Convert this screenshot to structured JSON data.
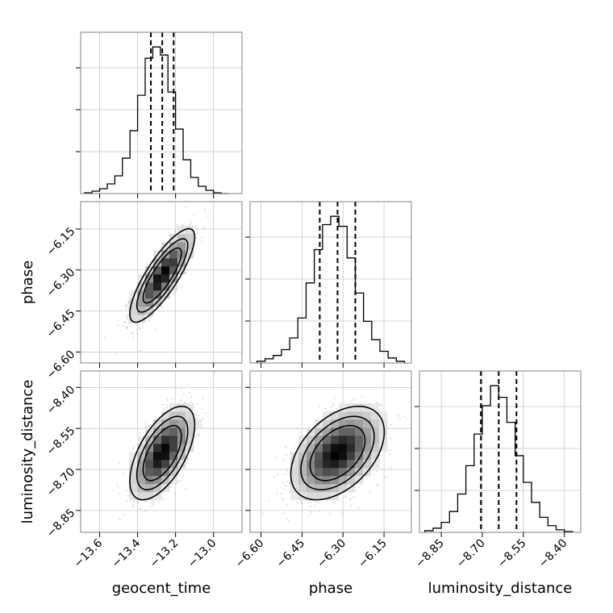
{
  "chart_data": {
    "type": "corner",
    "params": [
      "geocent_time",
      "phase",
      "luminosity_distance"
    ],
    "axis_labels": {
      "geocent_time": "geocent_time",
      "phase": "phase",
      "luminosity_distance": "luminosity_distance"
    },
    "ranges": {
      "geocent_time": [
        -13.7,
        -12.85
      ],
      "phase": [
        -6.64,
        -6.05
      ],
      "luminosity_distance": [
        -8.93,
        -8.34
      ]
    },
    "tick_values": {
      "geocent_time": [
        -13.6,
        -13.4,
        -13.2,
        -13.0
      ],
      "phase": [
        -6.6,
        -6.45,
        -6.3,
        -6.15
      ],
      "luminosity_distance": [
        -8.85,
        -8.7,
        -8.55,
        -8.4
      ]
    },
    "tick_labels": {
      "geocent_time": [
        "−13.6",
        "−13.4",
        "−13.2",
        "−13.0"
      ],
      "phase": [
        "−6.60",
        "−6.45",
        "−6.30",
        "−6.15"
      ],
      "luminosity_distance": [
        "−8.85",
        "−8.70",
        "−8.55",
        "−8.40"
      ]
    },
    "histograms": {
      "geocent_time": {
        "bin_edges": [
          -13.68,
          -13.64,
          -13.6,
          -13.56,
          -13.52,
          -13.48,
          -13.44,
          -13.4,
          -13.36,
          -13.32,
          -13.28,
          -13.24,
          -13.2,
          -13.16,
          -13.12,
          -13.08,
          -13.04,
          -13.0,
          -12.96,
          -12.92
        ],
        "counts": [
          1,
          3,
          6,
          12,
          22,
          44,
          78,
          122,
          168,
          182,
          172,
          126,
          80,
          42,
          20,
          9,
          4,
          1,
          0
        ]
      },
      "phase": {
        "bin_edges": [
          -6.615,
          -6.585,
          -6.555,
          -6.525,
          -6.495,
          -6.465,
          -6.435,
          -6.405,
          -6.375,
          -6.345,
          -6.315,
          -6.285,
          -6.255,
          -6.225,
          -6.195,
          -6.165,
          -6.135,
          -6.105,
          -6.075
        ],
        "counts": [
          2,
          5,
          9,
          16,
          30,
          54,
          96,
          136,
          166,
          176,
          164,
          126,
          84,
          50,
          28,
          14,
          6,
          2
        ]
      },
      "luminosity_distance": {
        "bin_edges": [
          -8.91,
          -8.88,
          -8.85,
          -8.82,
          -8.79,
          -8.76,
          -8.73,
          -8.7,
          -8.67,
          -8.64,
          -8.61,
          -8.58,
          -8.55,
          -8.52,
          -8.49,
          -8.46,
          -8.43,
          -8.4,
          -8.37
        ],
        "counts": [
          2,
          5,
          12,
          25,
          46,
          80,
          118,
          152,
          176,
          162,
          132,
          92,
          60,
          36,
          18,
          8,
          3,
          1
        ]
      }
    },
    "quantiles": {
      "geocent_time": [
        -13.33,
        -13.27,
        -13.21
      ],
      "phase": [
        -6.385,
        -6.32,
        -6.255
      ],
      "luminosity_distance": [
        -8.705,
        -8.64,
        -8.575
      ]
    },
    "correlations": {
      "phase|geocent_time": {
        "mean": [
          -13.27,
          -6.32
        ],
        "sd": [
          0.075,
          0.075
        ],
        "rho": 0.82
      },
      "luminosity_distance|geocent_time": {
        "mean": [
          -13.27,
          -8.64
        ],
        "sd": [
          0.075,
          0.075
        ],
        "rho": 0.6
      },
      "luminosity_distance|phase": {
        "mean": [
          -6.32,
          -8.64
        ],
        "sd": [
          0.075,
          0.075
        ],
        "rho": 0.45
      }
    },
    "grid": true
  }
}
